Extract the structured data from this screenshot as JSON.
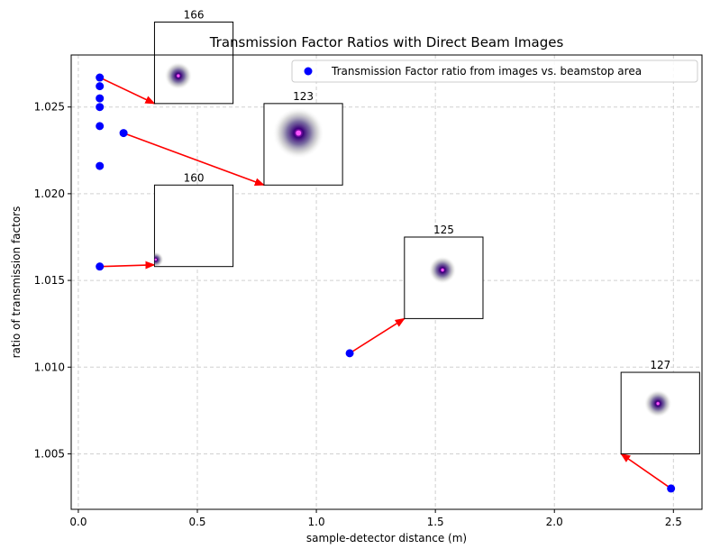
{
  "chart_data": {
    "type": "scatter",
    "title": "Transmission Factor Ratios with Direct Beam Images",
    "xlabel": "sample-detector distance (m)",
    "ylabel": "ratio of transmission factors",
    "xlim": [
      -0.03,
      2.62
    ],
    "ylim": [
      1.0018,
      1.028
    ],
    "xticks": [
      0.0,
      0.5,
      1.0,
      1.5,
      2.0,
      2.5
    ],
    "xtick_labels": [
      "0.0",
      "0.5",
      "1.0",
      "1.5",
      "2.0",
      "2.5"
    ],
    "yticks": [
      1.005,
      1.01,
      1.015,
      1.02,
      1.025
    ],
    "ytick_labels": [
      "1.005",
      "1.010",
      "1.015",
      "1.020",
      "1.025"
    ],
    "grid": true,
    "legend_position": "top-right",
    "series": [
      {
        "name": "Transmission Factor ratio from images vs. beamstop area",
        "color": "#0000ff",
        "points": [
          {
            "x": 0.09,
            "y": 1.0267
          },
          {
            "x": 0.09,
            "y": 1.0262
          },
          {
            "x": 0.09,
            "y": 1.0255
          },
          {
            "x": 0.09,
            "y": 1.025
          },
          {
            "x": 0.09,
            "y": 1.0239
          },
          {
            "x": 0.09,
            "y": 1.0216
          },
          {
            "x": 0.09,
            "y": 1.0158
          },
          {
            "x": 0.19,
            "y": 1.0235
          },
          {
            "x": 1.14,
            "y": 1.0108
          },
          {
            "x": 2.49,
            "y": 1.003
          }
        ]
      }
    ],
    "annotations": [
      {
        "label": "166",
        "from": {
          "x": 0.09,
          "y": 1.0267
        },
        "inset_x": [
          0.32,
          0.65
        ],
        "inset_y": [
          1.0252,
          1.0299
        ],
        "arrow_to": {
          "x": 0.32,
          "y": 1.0252
        },
        "beam_at": [
          0.42,
          1.0268
        ],
        "beam_size": "small"
      },
      {
        "label": "123",
        "from": {
          "x": 0.19,
          "y": 1.0235
        },
        "inset_x": [
          0.78,
          1.11
        ],
        "inset_y": [
          1.0205,
          1.0252
        ],
        "arrow_to": {
          "x": 0.78,
          "y": 1.0205
        },
        "beam_at": [
          0.925,
          1.0235
        ],
        "beam_size": "large"
      },
      {
        "label": "160",
        "from": {
          "x": 0.09,
          "y": 1.0158
        },
        "inset_x": [
          0.32,
          0.65
        ],
        "inset_y": [
          1.0158,
          1.0205
        ],
        "arrow_to": {
          "x": 0.32,
          "y": 1.0159
        },
        "beam_at": [
          0.325,
          1.0162
        ],
        "beam_size": "tiny"
      },
      {
        "label": "125",
        "from": {
          "x": 1.14,
          "y": 1.0108
        },
        "inset_x": [
          1.37,
          1.7
        ],
        "inset_y": [
          1.0128,
          1.0175
        ],
        "arrow_to": {
          "x": 1.37,
          "y": 1.0128
        },
        "beam_at": [
          1.53,
          1.0156
        ],
        "beam_size": "small"
      },
      {
        "label": "127",
        "from": {
          "x": 2.49,
          "y": 1.003
        },
        "inset_x": [
          2.28,
          2.61
        ],
        "inset_y": [
          1.005,
          1.0097
        ],
        "arrow_to": {
          "x": 2.28,
          "y": 1.005
        },
        "beam_at": [
          2.435,
          1.0079
        ],
        "beam_size": "small"
      }
    ],
    "arrow_color": "#ff0000"
  }
}
